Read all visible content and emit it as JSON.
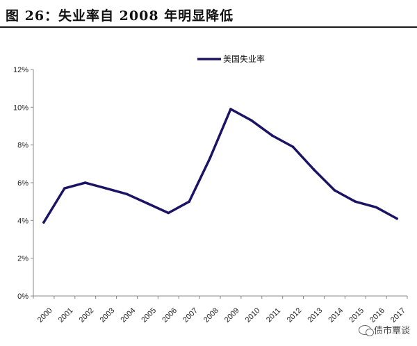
{
  "title": "图 26：失业率自 2008 年明显降低",
  "watermark": {
    "text": "债市覃谈",
    "icon": "wechat-icon"
  },
  "chart_data": {
    "type": "line",
    "categories": [
      "2000",
      "2001",
      "2002",
      "2003",
      "2004",
      "2005",
      "2006",
      "2007",
      "2008",
      "2009",
      "2010",
      "2011",
      "2012",
      "2013",
      "2014",
      "2015",
      "2016",
      "2017"
    ],
    "series": [
      {
        "name": "美国失业率",
        "values": [
          3.9,
          5.7,
          6.0,
          5.7,
          5.4,
          4.9,
          4.4,
          5.0,
          7.3,
          9.9,
          9.3,
          8.5,
          7.9,
          6.7,
          5.6,
          5.0,
          4.7,
          4.1
        ],
        "color": "#1b1464"
      }
    ],
    "yticks": [
      "0%",
      "2%",
      "4%",
      "6%",
      "8%",
      "10%",
      "12%"
    ],
    "ylim": [
      0,
      12
    ],
    "legend_position": "top-center",
    "grid": false
  }
}
